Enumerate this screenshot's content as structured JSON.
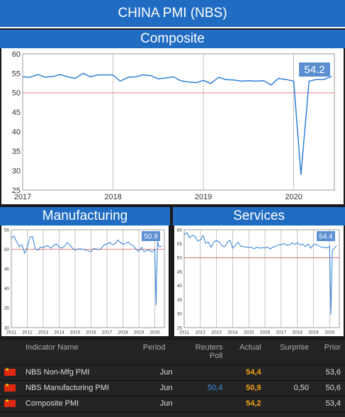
{
  "header": {
    "title": "CHINA PMI (NBS)"
  },
  "sections": {
    "composite": "Composite",
    "manufacturing": "Manufacturing",
    "services": "Services"
  },
  "colors": {
    "header": "#1f6cc2",
    "line": "#2f7fd6",
    "ref_line": "#e15a5a",
    "badge": "#5b8fd0",
    "actual": "#f6a21c",
    "poll": "#3a8fe0"
  },
  "chart_data": [
    {
      "type": "line",
      "title": "Composite",
      "x_ticks": [
        "2017",
        "2018",
        "2019",
        "2020"
      ],
      "xlim": [
        2017,
        2020.45
      ],
      "ylim": [
        25,
        60
      ],
      "y_ticks": [
        25,
        30,
        35,
        40,
        45,
        50,
        55,
        60
      ],
      "reference_line": 50,
      "last_value_label": "54.2",
      "grid": true,
      "series": [
        {
          "x": [
            2017.0,
            2017.08,
            2017.17,
            2017.25,
            2017.33,
            2017.42,
            2017.5,
            2017.58,
            2017.67,
            2017.75,
            2017.83,
            2017.92,
            2018.0,
            2018.08,
            2018.17,
            2018.25,
            2018.33,
            2018.42,
            2018.5,
            2018.58,
            2018.67,
            2018.75,
            2018.83,
            2018.92,
            2019.0,
            2019.08,
            2019.17,
            2019.25,
            2019.33,
            2019.42,
            2019.5,
            2019.58,
            2019.67,
            2019.75,
            2019.83,
            2019.92,
            2020.0,
            2020.08,
            2020.17,
            2020.25,
            2020.33,
            2020.42
          ],
          "y": [
            54.1,
            54.0,
            54.7,
            54.0,
            54.2,
            54.7,
            54.1,
            53.7,
            55.0,
            54.1,
            54.6,
            54.6,
            54.6,
            53.0,
            54.0,
            54.1,
            54.6,
            54.4,
            53.6,
            53.8,
            54.1,
            53.1,
            52.8,
            52.6,
            53.2,
            52.4,
            54.0,
            53.4,
            53.3,
            53.0,
            53.1,
            53.0,
            53.1,
            52.0,
            53.7,
            53.4,
            53.0,
            28.9,
            53.0,
            53.4,
            53.4,
            54.2
          ]
        }
      ]
    },
    {
      "type": "line",
      "title": "Manufacturing",
      "x_ticks": [
        "2011",
        "2012",
        "2013",
        "2014",
        "2015",
        "2016",
        "2017",
        "2018",
        "2019",
        "2020"
      ],
      "xlim": [
        2011,
        2020.6
      ],
      "ylim": [
        30,
        55
      ],
      "y_ticks": [
        30,
        35,
        40,
        45,
        50,
        55
      ],
      "reference_line": 50,
      "last_value_label": "50.9",
      "grid": true,
      "series": [
        {
          "x": [
            2011.0,
            2011.17,
            2011.33,
            2011.5,
            2011.67,
            2011.83,
            2012.0,
            2012.17,
            2012.33,
            2012.5,
            2012.67,
            2012.83,
            2013.0,
            2013.17,
            2013.33,
            2013.5,
            2013.67,
            2013.83,
            2014.0,
            2014.17,
            2014.33,
            2014.5,
            2014.67,
            2014.83,
            2015.0,
            2015.17,
            2015.33,
            2015.5,
            2015.67,
            2015.83,
            2016.0,
            2016.17,
            2016.33,
            2016.5,
            2016.67,
            2016.83,
            2017.0,
            2017.17,
            2017.33,
            2017.5,
            2017.67,
            2017.83,
            2018.0,
            2018.17,
            2018.33,
            2018.5,
            2018.67,
            2018.83,
            2019.0,
            2019.17,
            2019.33,
            2019.5,
            2019.67,
            2019.83,
            2020.0,
            2020.08,
            2020.17,
            2020.25,
            2020.33,
            2020.42
          ],
          "y": [
            52.9,
            53.4,
            52.0,
            50.7,
            51.2,
            49.0,
            50.5,
            53.1,
            53.3,
            50.1,
            49.8,
            50.6,
            50.4,
            50.9,
            50.8,
            50.3,
            51.1,
            51.4,
            50.5,
            50.3,
            50.8,
            51.7,
            51.1,
            50.3,
            49.8,
            50.1,
            50.1,
            50.0,
            49.8,
            49.6,
            49.4,
            50.2,
            50.1,
            49.9,
            50.4,
            51.2,
            51.3,
            51.8,
            51.2,
            51.4,
            52.4,
            51.8,
            51.3,
            51.5,
            51.9,
            51.2,
            50.8,
            50.0,
            49.5,
            50.5,
            49.4,
            49.7,
            49.8,
            49.3,
            50.0,
            35.7,
            52.0,
            50.8,
            50.6,
            50.9
          ]
        }
      ]
    },
    {
      "type": "line",
      "title": "Services",
      "x_ticks": [
        "2011",
        "2012",
        "2013",
        "2014",
        "2015",
        "2016",
        "2017",
        "2018",
        "2019",
        "2020"
      ],
      "xlim": [
        2011,
        2020.6
      ],
      "ylim": [
        25,
        60
      ],
      "y_ticks": [
        25,
        30,
        35,
        40,
        45,
        50,
        55,
        60
      ],
      "reference_line": 50,
      "last_value_label": "54.4",
      "grid": true,
      "series": [
        {
          "x": [
            2011.0,
            2011.17,
            2011.33,
            2011.5,
            2011.67,
            2011.83,
            2012.0,
            2012.17,
            2012.33,
            2012.5,
            2012.67,
            2012.83,
            2013.0,
            2013.17,
            2013.33,
            2013.5,
            2013.67,
            2013.83,
            2014.0,
            2014.17,
            2014.33,
            2014.5,
            2014.67,
            2014.83,
            2015.0,
            2015.17,
            2015.33,
            2015.5,
            2015.67,
            2015.83,
            2016.0,
            2016.17,
            2016.33,
            2016.5,
            2016.67,
            2016.83,
            2017.0,
            2017.17,
            2017.33,
            2017.5,
            2017.67,
            2017.83,
            2018.0,
            2018.17,
            2018.33,
            2018.5,
            2018.67,
            2018.83,
            2019.0,
            2019.17,
            2019.33,
            2019.5,
            2019.67,
            2019.83,
            2020.0,
            2020.08,
            2020.17,
            2020.25,
            2020.33,
            2020.42
          ],
          "y": [
            58.2,
            59.0,
            57.1,
            58.0,
            57.7,
            56.0,
            56.3,
            58.0,
            55.2,
            55.6,
            53.7,
            55.6,
            56.2,
            55.6,
            54.3,
            53.9,
            55.4,
            56.3,
            53.4,
            54.5,
            55.5,
            54.2,
            54.0,
            53.8,
            53.7,
            53.7,
            53.2,
            53.8,
            53.4,
            53.6,
            53.5,
            53.8,
            53.1,
            53.9,
            54.0,
            54.7,
            54.6,
            55.1,
            54.5,
            54.5,
            55.4,
            54.8,
            55.3,
            54.6,
            54.9,
            54.0,
            54.9,
            53.4,
            54.7,
            54.8,
            54.3,
            53.7,
            53.7,
            53.5,
            54.1,
            29.6,
            52.3,
            53.2,
            53.6,
            54.4
          ]
        }
      ]
    }
  ],
  "table": {
    "headers": {
      "indicator": "Indicator Name",
      "period": "Period",
      "poll": "Reuters Poll",
      "actual": "Actual",
      "surprise": "Surprise",
      "prior": "Prior"
    },
    "rows": [
      {
        "flag": "china-flag-icon",
        "name": "NBS Non-Mfg PMI",
        "period": "Jun",
        "poll": "",
        "actual": "54,4",
        "surprise": "",
        "prior": "53,6"
      },
      {
        "flag": "china-flag-icon",
        "name": "NBS Manufacturing PMI",
        "period": "Jun",
        "poll": "50,4",
        "actual": "50,9",
        "surprise": "0,50",
        "prior": "50,6"
      },
      {
        "flag": "china-flag-icon",
        "name": "Composite PMI",
        "period": "Jun",
        "poll": "",
        "actual": "54,2",
        "surprise": "",
        "prior": "53,4"
      }
    ]
  }
}
